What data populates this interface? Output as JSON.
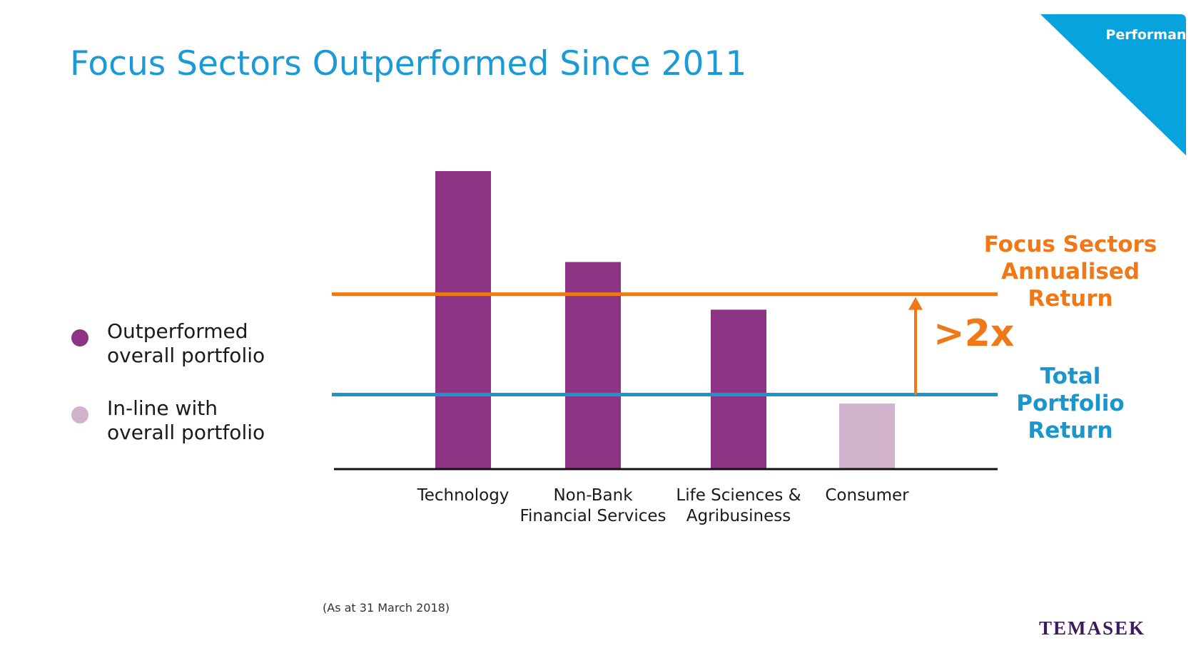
{
  "title": "Focus Sectors Outperformed Since 2011",
  "badge": "Performance",
  "footnote": "(As at 31 March 2018)",
  "logo": "TEMASEK",
  "legend": [
    {
      "label": "Outperformed\noverall portfolio",
      "color": "#8e3485"
    },
    {
      "label": "In-line with\noverall portfolio",
      "color": "#d2b3cd"
    }
  ],
  "colors": {
    "accent": "#1a9ad6",
    "focus_line": "#f07817",
    "total_line": "#1a96cd",
    "outperformed": "#8e3485",
    "inline": "#d2b3cd"
  },
  "chart_data": {
    "type": "bar",
    "categories": [
      [
        "Technology"
      ],
      [
        "Non-Bank",
        "Financial Services"
      ],
      [
        "Life Sciences &",
        "Agribusiness"
      ],
      [
        "Consumer"
      ]
    ],
    "values": [
      100,
      69.5,
      53.5,
      22
    ],
    "status": [
      "outperformed",
      "outperformed",
      "outperformed",
      "inline"
    ],
    "reference_lines": [
      {
        "name": "Focus Sectors Annualised Return",
        "label_lines": [
          "Focus Sectors",
          "Annualised",
          "Return"
        ],
        "value": 58.7,
        "color": "#f07817"
      },
      {
        "name": "Total Portfolio Return",
        "label_lines": [
          "Total",
          "Portfolio",
          "Return"
        ],
        "value": 25,
        "color": "#1a96cd"
      }
    ],
    "annotation": ">2x",
    "ylim": [
      0,
      100
    ],
    "grid": false
  }
}
